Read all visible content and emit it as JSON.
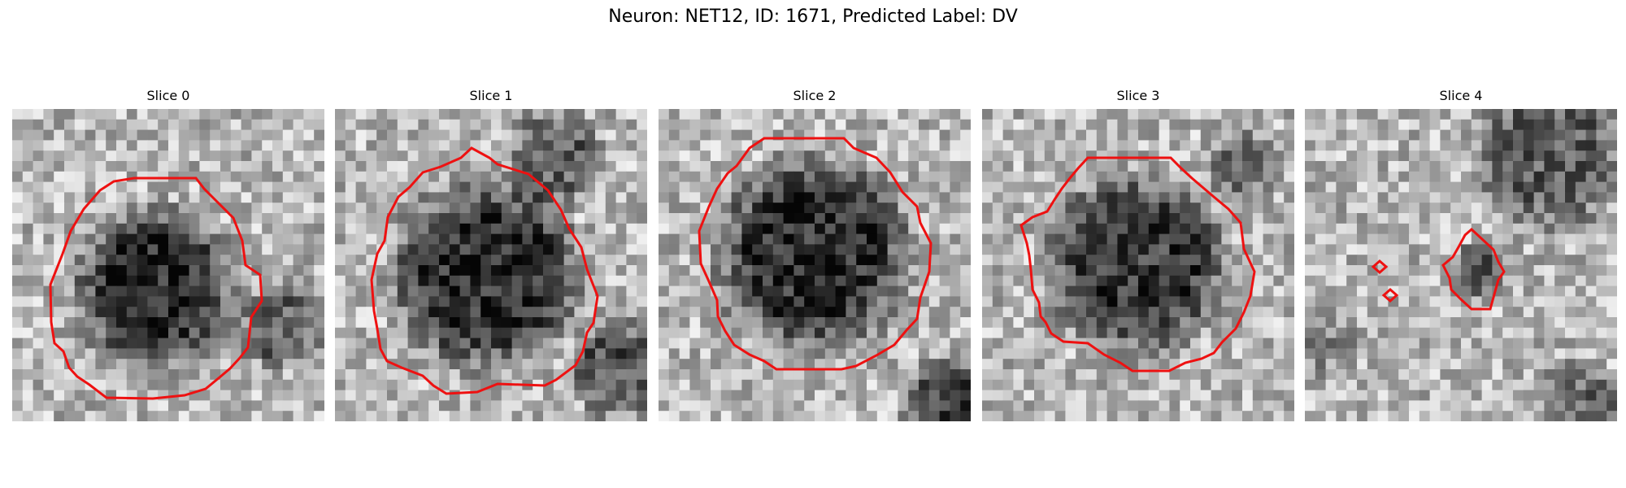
{
  "figure": {
    "title": "Neuron: NET12, ID: 1671, Predicted Label: DV"
  },
  "panels": [
    {
      "title": "Slice 0"
    },
    {
      "title": "Slice 1"
    },
    {
      "title": "Slice 2"
    },
    {
      "title": "Slice 3"
    },
    {
      "title": "Slice 4"
    }
  ],
  "colors": {
    "contour": "#ee1111",
    "background": "#ffffff"
  }
}
